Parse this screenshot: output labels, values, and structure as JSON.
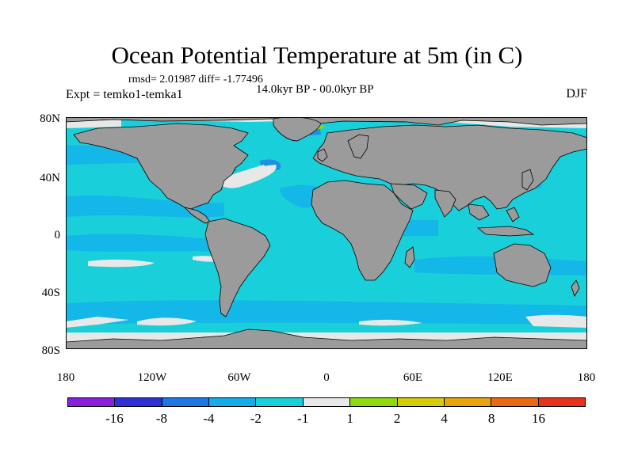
{
  "title": "Ocean Potential Temperature at 5m (in C)",
  "stats": "rmsd= 2.01987 diff= -1.77496",
  "experiment": "Expt = temko1-temka1",
  "period": "14.0kyr BP - 00.0kyr BP",
  "season": "DJF",
  "axes": {
    "y_labels": [
      "80N",
      "40N",
      "0",
      "40S",
      "80S"
    ],
    "x_labels": [
      "180",
      "120W",
      "60W",
      "0",
      "60E",
      "120E",
      "180"
    ]
  },
  "colors": {
    "land": "#9b9b9b",
    "ocean_bg": "#19cfd9",
    "band_light": "#13b8e8",
    "band_mid": "#1e8fe3",
    "near_zero": "#e8e8e8",
    "warm": "#8fd90c",
    "coast": "#000000"
  },
  "colorbar": {
    "colors": [
      "#8a1fe0",
      "#2f30d8",
      "#1e78e3",
      "#13aeea",
      "#19cfd9",
      "#e8e8e8",
      "#8fd90c",
      "#d6cc0a",
      "#e8a40b",
      "#e96a10",
      "#e8331a"
    ],
    "labels": [
      "-16",
      "-8",
      "-4",
      "-2",
      "-1",
      "1",
      "2",
      "4",
      "8",
      "16"
    ]
  }
}
